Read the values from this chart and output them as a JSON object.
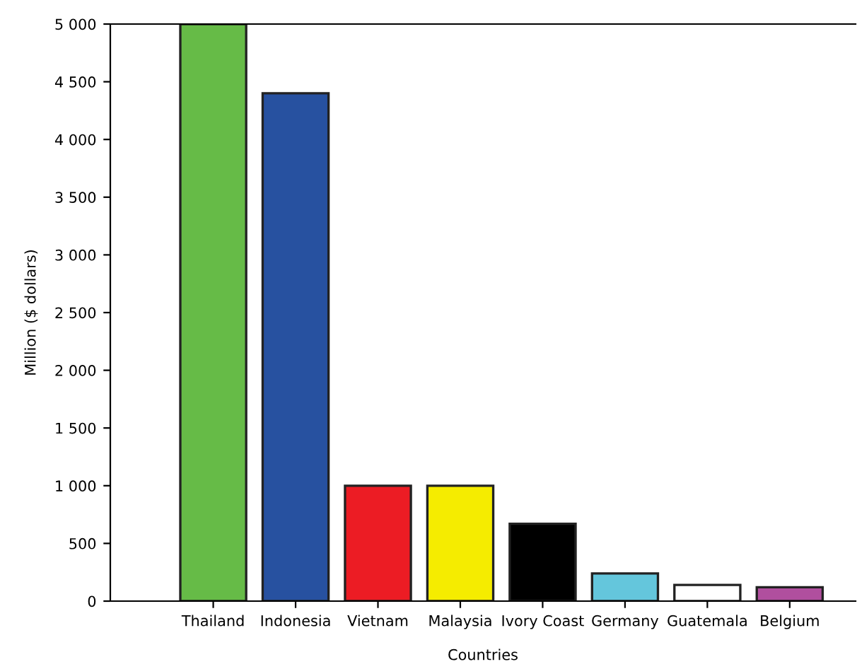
{
  "chart_data": {
    "type": "bar",
    "xlabel": "Countries",
    "ylabel": "Million ($ dollars)",
    "categories": [
      "Thailand",
      "Indonesia",
      "Vietnam",
      "Malaysia",
      "Ivory Coast",
      "Germany",
      "Guatemala",
      "Belgium"
    ],
    "values": [
      5000,
      4400,
      1000,
      1000,
      670,
      240,
      140,
      120
    ],
    "colors": [
      "#66bb47",
      "#2751a0",
      "#ec1c24",
      "#f5ec00",
      "#000000",
      "#64c6dc",
      "#ffffff",
      "#b04f9e"
    ],
    "ylim": [
      0,
      5000
    ],
    "yticks": [
      0,
      500,
      {
        "value": 1000,
        "label": "1 000"
      },
      {
        "value": 1500,
        "label": "1 500"
      },
      {
        "value": 2000,
        "label": "2 000"
      },
      {
        "value": 2500,
        "label": "2 500"
      },
      {
        "value": 3000,
        "label": "3 000"
      },
      {
        "value": 3500,
        "label": "3 500"
      },
      {
        "value": 4000,
        "label": "4 000"
      },
      {
        "value": 4500,
        "label": "4 500"
      },
      {
        "value": 5000,
        "label": "5 000"
      }
    ],
    "grid": false,
    "legend": false
  }
}
